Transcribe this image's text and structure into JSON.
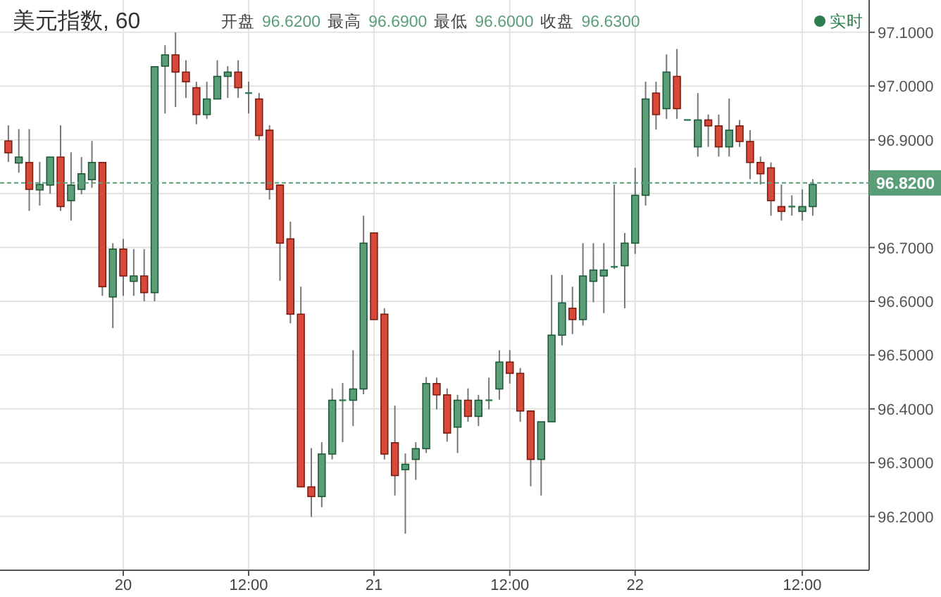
{
  "chart_data": {
    "type": "candlestick",
    "title": "美元指数, 60",
    "annotations": [
      "开盘",
      "96.6200",
      "最高",
      "96.6900",
      "最低",
      "96.6000",
      "收盘",
      "96.6300",
      "实时"
    ],
    "categories": [
      null,
      null,
      null,
      null,
      null,
      null,
      null,
      null,
      null,
      null,
      null,
      "20",
      null,
      null,
      null,
      null,
      null,
      null,
      null,
      null,
      null,
      null,
      null,
      "12:00",
      null,
      null,
      null,
      null,
      null,
      null,
      null,
      null,
      null,
      null,
      null,
      "21",
      null,
      null,
      null,
      null,
      null,
      null,
      null,
      null,
      null,
      null,
      null,
      null,
      "12:00",
      null,
      null,
      null,
      null,
      null,
      null,
      null,
      null,
      null,
      null,
      null,
      "22",
      null,
      null,
      null,
      null,
      null,
      null,
      null,
      null,
      null,
      null,
      null,
      null,
      null,
      null,
      null,
      "12:00",
      null
    ],
    "ohlc": [
      [
        96.898,
        96.927,
        96.859,
        96.876
      ],
      [
        96.857,
        96.92,
        96.839,
        96.868
      ],
      [
        96.858,
        96.92,
        96.768,
        96.808
      ],
      [
        96.807,
        96.859,
        96.778,
        96.817
      ],
      [
        96.816,
        96.868,
        96.8,
        96.868
      ],
      [
        96.868,
        96.927,
        96.768,
        96.776
      ],
      [
        96.787,
        96.877,
        96.75,
        96.816
      ],
      [
        96.808,
        96.868,
        96.799,
        96.837
      ],
      [
        96.826,
        96.898,
        96.811,
        96.858
      ],
      [
        96.858,
        96.858,
        96.61,
        96.627
      ],
      [
        96.608,
        96.708,
        96.55,
        96.697
      ],
      [
        96.697,
        96.716,
        96.61,
        96.647
      ],
      [
        96.637,
        96.697,
        96.61,
        96.647
      ],
      [
        96.647,
        96.697,
        96.6,
        96.616
      ],
      [
        96.616,
        97.036,
        96.6,
        97.036
      ],
      [
        97.037,
        97.076,
        96.949,
        97.058
      ],
      [
        97.058,
        97.1,
        96.961,
        97.026
      ],
      [
        97.026,
        97.048,
        96.978,
        97.008
      ],
      [
        96.997,
        97.008,
        96.929,
        96.947
      ],
      [
        96.947,
        97.008,
        96.939,
        96.976
      ],
      [
        96.976,
        97.048,
        96.976,
        97.018
      ],
      [
        97.018,
        97.037,
        96.978,
        97.026
      ],
      [
        97.026,
        97.048,
        96.978,
        96.997
      ],
      [
        96.987,
        97.008,
        96.949,
        96.987
      ],
      [
        96.976,
        96.987,
        96.899,
        96.908
      ],
      [
        96.918,
        96.927,
        96.789,
        96.808
      ],
      [
        96.816,
        96.817,
        96.638,
        96.708
      ],
      [
        96.716,
        96.748,
        96.559,
        96.576
      ],
      [
        96.576,
        96.627,
        96.255,
        96.255
      ],
      [
        96.255,
        96.327,
        96.199,
        96.237
      ],
      [
        96.237,
        96.338,
        96.217,
        96.316
      ],
      [
        96.316,
        96.438,
        96.306,
        96.416
      ],
      [
        96.416,
        96.448,
        96.338,
        96.416
      ],
      [
        96.416,
        96.509,
        96.368,
        96.437
      ],
      [
        96.437,
        96.759,
        96.427,
        96.708
      ],
      [
        96.727,
        96.727,
        96.566,
        96.566
      ],
      [
        96.576,
        96.587,
        96.306,
        96.316
      ],
      [
        96.337,
        96.406,
        96.239,
        96.276
      ],
      [
        96.287,
        96.317,
        96.168,
        96.297
      ],
      [
        96.306,
        96.338,
        96.268,
        96.326
      ],
      [
        96.326,
        96.459,
        96.318,
        96.447
      ],
      [
        96.447,
        96.458,
        96.399,
        96.426
      ],
      [
        96.426,
        96.438,
        96.339,
        96.355
      ],
      [
        96.366,
        96.426,
        96.318,
        96.416
      ],
      [
        96.416,
        96.438,
        96.376,
        96.386
      ],
      [
        96.386,
        96.426,
        96.368,
        96.416
      ],
      [
        96.416,
        96.458,
        96.399,
        96.416
      ],
      [
        96.437,
        96.509,
        96.417,
        96.487
      ],
      [
        96.487,
        96.509,
        96.447,
        96.466
      ],
      [
        96.466,
        96.476,
        96.376,
        96.396
      ],
      [
        96.396,
        96.396,
        96.256,
        96.306
      ],
      [
        96.306,
        96.376,
        96.239,
        96.376
      ],
      [
        96.376,
        96.649,
        96.376,
        96.537
      ],
      [
        96.537,
        96.649,
        96.518,
        96.597
      ],
      [
        96.587,
        96.627,
        96.539,
        96.566
      ],
      [
        96.566,
        96.708,
        96.555,
        96.647
      ],
      [
        96.637,
        96.708,
        96.598,
        96.658
      ],
      [
        96.647,
        96.708,
        96.578,
        96.658
      ],
      [
        96.664,
        96.817,
        96.66,
        96.664
      ],
      [
        96.666,
        96.727,
        96.587,
        96.708
      ],
      [
        96.708,
        96.848,
        96.688,
        96.797
      ],
      [
        96.797,
        97.008,
        96.778,
        96.976
      ],
      [
        96.987,
        97.008,
        96.919,
        96.947
      ],
      [
        96.958,
        97.059,
        96.939,
        97.026
      ],
      [
        97.018,
        97.069,
        96.939,
        96.958
      ],
      [
        96.937,
        96.937,
        96.937,
        96.937
      ],
      [
        96.887,
        96.987,
        96.869,
        96.937
      ],
      [
        96.937,
        96.947,
        96.887,
        96.926
      ],
      [
        96.926,
        96.947,
        96.869,
        96.887
      ],
      [
        96.887,
        96.977,
        96.869,
        96.918
      ],
      [
        96.926,
        96.937,
        96.887,
        96.897
      ],
      [
        96.897,
        96.918,
        96.827,
        96.858
      ],
      [
        96.858,
        96.869,
        96.817,
        96.837
      ],
      [
        96.848,
        96.858,
        96.759,
        96.787
      ],
      [
        96.776,
        96.817,
        96.75,
        96.767
      ],
      [
        96.776,
        96.797,
        96.759,
        96.776
      ],
      [
        96.767,
        96.808,
        96.75,
        96.776
      ],
      [
        96.776,
        96.827,
        96.759,
        96.817
      ]
    ],
    "ylim": [
      96.1,
      97.16
    ],
    "yticks": [
      {
        "value": 97.1,
        "label": "97.1000"
      },
      {
        "value": 97.0,
        "label": "97.0000"
      },
      {
        "value": 96.9,
        "label": "96.9000"
      },
      {
        "value": 96.8,
        "label": null
      },
      {
        "value": 96.7,
        "label": "96.7000"
      },
      {
        "value": 96.6,
        "label": "96.6000"
      },
      {
        "value": 96.5,
        "label": "96.5000"
      },
      {
        "value": 96.4,
        "label": "96.4000"
      },
      {
        "value": 96.3,
        "label": "96.3000"
      },
      {
        "value": 96.2,
        "label": "96.2000"
      }
    ],
    "grid": true,
    "ref_lines": [
      {
        "axis": "y",
        "value": 96.82,
        "label": "96.8200",
        "color": "#5a9e78",
        "line_style": "dashed"
      }
    ]
  }
}
